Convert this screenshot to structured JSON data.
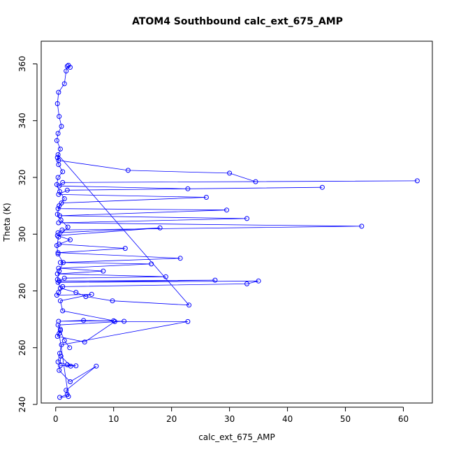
{
  "chart_data": {
    "type": "line",
    "title": "ATOM4 Southbound calc_ext_675_AMP",
    "xlabel": "calc_ext_675_AMP",
    "ylabel": "Theta (K)",
    "xlim": [
      -2.5,
      65
    ],
    "ylim": [
      240.5,
      368
    ],
    "xticks": [
      0,
      10,
      20,
      30,
      40,
      50,
      60
    ],
    "yticks": [
      240,
      260,
      280,
      300,
      320,
      340,
      360
    ],
    "xtick_labels": [
      "0",
      "10",
      "20",
      "30",
      "40",
      "50",
      "60"
    ],
    "ytick_labels": [
      "240",
      "260",
      "280",
      "300",
      "320",
      "340",
      "360"
    ],
    "grid": false,
    "marker": "open-circle",
    "series": [
      {
        "color": "#0000ff",
        "x": [
          2.2,
          2.5,
          2.0,
          1.8,
          1.5,
          0.5,
          0.3,
          0.6,
          1.0,
          0.4,
          0.2,
          0.8,
          0.3,
          0.5,
          1.2,
          0.4,
          0.2,
          0.7,
          1.5,
          0.6,
          0.3,
          0.9,
          2.1,
          0.5,
          0.2,
          0.4,
          1.3,
          0.6,
          0.3,
          0.8,
          3.5,
          5.2,
          9.8,
          23.0,
          0.4,
          0.5,
          12.5,
          30.0,
          34.5,
          62.4,
          1.2,
          0.6,
          22.8,
          46.0,
          2.0,
          0.5,
          26.0,
          1.0,
          0.4,
          29.5,
          0.7,
          33.0,
          0.5,
          52.8,
          1.1,
          0.4,
          18.0,
          0.3,
          2.5,
          0.6,
          12.0,
          0.4,
          21.5,
          0.8,
          16.5,
          0.5,
          8.2,
          0.3,
          19.0,
          1.5,
          0.6,
          27.5,
          0.4,
          35.0,
          33.0,
          1.2,
          0.5,
          0.2,
          6.2,
          0.8,
          1.2,
          10.0,
          0.5,
          4.8,
          11.8,
          0.4,
          0.8,
          0.3,
          5.0,
          10.2,
          22.8,
          1.0,
          0.7,
          0.4,
          2.0,
          3.5,
          0.8,
          2.6,
          0.9,
          0.6,
          2.5,
          7.0,
          1.8,
          2.0,
          0.7,
          2.2,
          0.6,
          0.8,
          1.5,
          2.4
        ],
        "y": [
          359.5,
          358.8,
          359.2,
          357.5,
          353.0,
          350.0,
          346.0,
          341.5,
          338.0,
          335.5,
          333.0,
          330.0,
          327.0,
          324.5,
          322.0,
          320.0,
          317.5,
          315.0,
          312.5,
          310.0,
          307.0,
          305.0,
          302.5,
          299.0,
          296.0,
          293.0,
          290.0,
          287.0,
          284.0,
          281.0,
          279.5,
          278.0,
          276.5,
          275.0,
          328.0,
          326.0,
          322.5,
          321.5,
          318.5,
          318.8,
          318.2,
          317.0,
          316.0,
          316.5,
          315.5,
          314.0,
          313.0,
          311.0,
          309.0,
          308.5,
          306.5,
          305.5,
          304.0,
          302.8,
          301.5,
          300.5,
          302.2,
          299.5,
          298.0,
          296.5,
          295.0,
          293.5,
          291.5,
          290.0,
          289.5,
          288.0,
          287.0,
          286.0,
          285.0,
          284.5,
          283.5,
          283.8,
          283.0,
          283.5,
          282.5,
          281.5,
          279.5,
          278.5,
          278.8,
          276.5,
          273.0,
          269.5,
          269.3,
          269.6,
          269.3,
          268.0,
          266.5,
          264.0,
          262.0,
          269.2,
          269.2,
          261.0,
          258.0,
          255.0,
          254.0,
          253.6,
          253.7,
          253.5,
          257.0,
          252.0,
          248.0,
          253.5,
          245.0,
          243.5,
          242.5,
          242.8,
          265.0,
          266.0,
          262.5,
          260.0
        ]
      }
    ]
  }
}
